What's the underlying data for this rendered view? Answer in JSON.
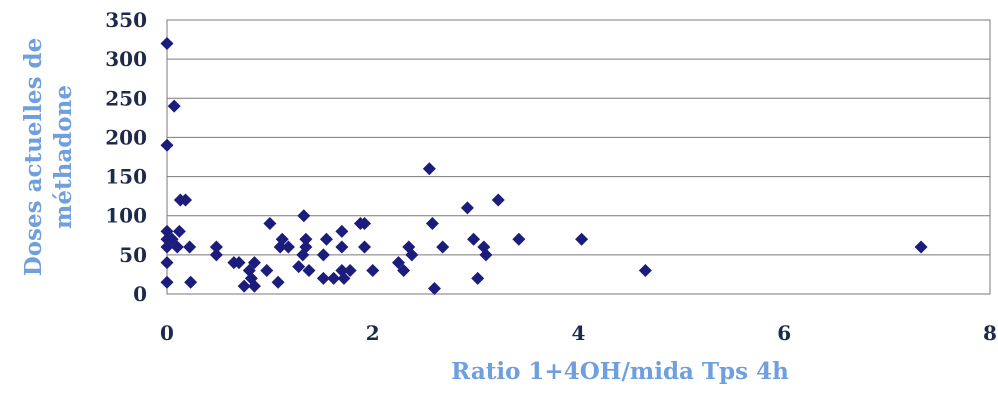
{
  "chart_data": {
    "type": "scatter",
    "xlabel": "Ratio 1+4OH/mida Tps 4h",
    "ylabel_lines": [
      "Doses actuelles de",
      "méthadone"
    ],
    "xlim": [
      0,
      8
    ],
    "ylim": [
      0,
      350
    ],
    "x_ticks": [
      0,
      2,
      4,
      6,
      8
    ],
    "y_ticks": [
      0,
      50,
      100,
      150,
      200,
      250,
      300,
      350
    ],
    "grid": "horizontal",
    "legend": "none",
    "marker": "diamond",
    "marker_color": "#1c1c7c",
    "points": [
      [
        0.0,
        320
      ],
      [
        0.07,
        240
      ],
      [
        0.0,
        190
      ],
      [
        0.13,
        120
      ],
      [
        0.18,
        120
      ],
      [
        0.0,
        80
      ],
      [
        0.12,
        80
      ],
      [
        0.0,
        70
      ],
      [
        0.05,
        70
      ],
      [
        0.0,
        60
      ],
      [
        0.1,
        60
      ],
      [
        0.22,
        60
      ],
      [
        0.0,
        40
      ],
      [
        0.0,
        15
      ],
      [
        0.23,
        15
      ],
      [
        0.48,
        60
      ],
      [
        0.48,
        50
      ],
      [
        0.65,
        40
      ],
      [
        0.7,
        40
      ],
      [
        0.75,
        10
      ],
      [
        0.8,
        30
      ],
      [
        0.85,
        40
      ],
      [
        0.85,
        10
      ],
      [
        0.82,
        20
      ],
      [
        0.97,
        30
      ],
      [
        1.0,
        90
      ],
      [
        1.1,
        60
      ],
      [
        1.12,
        70
      ],
      [
        1.18,
        60
      ],
      [
        1.08,
        15
      ],
      [
        1.28,
        35
      ],
      [
        1.33,
        100
      ],
      [
        1.35,
        70
      ],
      [
        1.35,
        60
      ],
      [
        1.32,
        50
      ],
      [
        1.38,
        30
      ],
      [
        1.52,
        50
      ],
      [
        1.55,
        70
      ],
      [
        1.52,
        20
      ],
      [
        1.62,
        20
      ],
      [
        1.7,
        80
      ],
      [
        1.7,
        60
      ],
      [
        1.72,
        20
      ],
      [
        1.7,
        30
      ],
      [
        1.78,
        30
      ],
      [
        1.88,
        90
      ],
      [
        1.92,
        90
      ],
      [
        1.92,
        60
      ],
      [
        2.0,
        30
      ],
      [
        2.25,
        40
      ],
      [
        2.3,
        30
      ],
      [
        2.35,
        60
      ],
      [
        2.38,
        50
      ],
      [
        2.55,
        160
      ],
      [
        2.58,
        90
      ],
      [
        2.6,
        7
      ],
      [
        2.68,
        60
      ],
      [
        2.92,
        110
      ],
      [
        2.98,
        70
      ],
      [
        3.02,
        20
      ],
      [
        3.08,
        60
      ],
      [
        3.1,
        50
      ],
      [
        3.22,
        120
      ],
      [
        3.42,
        70
      ],
      [
        4.03,
        70
      ],
      [
        4.65,
        30
      ],
      [
        7.33,
        60
      ]
    ]
  },
  "colors": {
    "axis_title": "#6f9fdc",
    "tick_label": "#1f2a4a",
    "grid": "#7a7a7a",
    "plot_border": "#7a7a7a"
  }
}
